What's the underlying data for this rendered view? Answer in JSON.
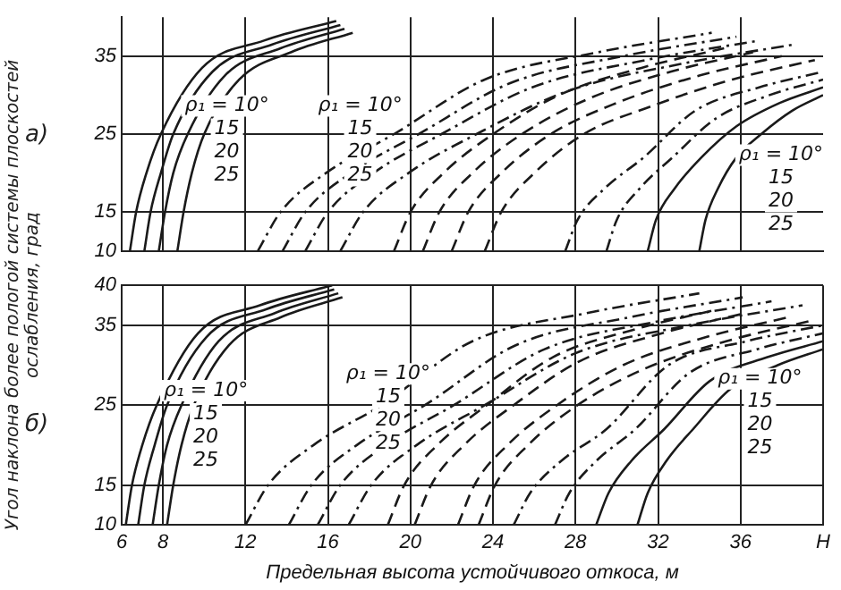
{
  "chart_data": [
    {
      "type": "line",
      "ylabel": "Угол наклона более пологой системы плоскостей ослабления, град",
      "xlim": [
        6,
        40
      ],
      "ylim": [
        10,
        40
      ],
      "xticks": [
        6,
        8,
        12,
        16,
        20,
        24,
        28,
        32,
        36
      ],
      "yticks": [
        10,
        15,
        25,
        35
      ],
      "grid": true,
      "tick_labels": "y",
      "annotations": [
        "а)",
        "ρ₁ = 10°",
        "15",
        "20",
        "25",
        "ρ₁ = 10°",
        "15",
        "20",
        "25",
        "ρ₁ = 10°",
        "15",
        "20",
        "25"
      ],
      "series": [
        {
          "color": "#1a1a1a",
          "line_style": "solid",
          "x": [
            6.4,
            6.7,
            7.2,
            7.9,
            9.9,
            12.9,
            16.4
          ],
          "values": [
            10,
            15,
            20,
            25,
            33.5,
            37,
            39.5
          ]
        },
        {
          "color": "#1a1a1a",
          "line_style": "solid",
          "x": [
            7.1,
            7.4,
            7.9,
            8.5,
            10.4,
            13.3,
            16.6
          ],
          "values": [
            10,
            15,
            20,
            25,
            33,
            36.5,
            39
          ]
        },
        {
          "color": "#1a1a1a",
          "line_style": "solid",
          "x": [
            7.8,
            8.1,
            8.5,
            9.2,
            11,
            13.7,
            16.8
          ],
          "values": [
            10,
            15,
            20,
            25,
            32.5,
            36,
            38.5
          ]
        },
        {
          "color": "#1a1a1a",
          "line_style": "solid",
          "x": [
            8.7,
            9,
            9.4,
            10,
            11.7,
            14.2,
            17.2
          ],
          "values": [
            10,
            15,
            20,
            25,
            32,
            35.5,
            38
          ]
        },
        {
          "color": "#1a1a1a",
          "line_style": "dotted",
          "x": [
            12.6,
            13.7,
            15.9,
            19.2,
            23.6,
            29.1,
            34.6
          ],
          "values": [
            10,
            15,
            20,
            25,
            32,
            35.5,
            38
          ]
        },
        {
          "color": "#1a1a1a",
          "line_style": "dotted",
          "x": [
            13.8,
            14.9,
            17.1,
            20.4,
            24.8,
            30.3,
            35.8
          ],
          "values": [
            10,
            15,
            20,
            25,
            31.5,
            35,
            37.5
          ]
        },
        {
          "color": "#1a1a1a",
          "line_style": "dotted",
          "x": [
            14.9,
            16,
            18.2,
            21.5,
            25.9,
            31.4,
            36.9
          ],
          "values": [
            10,
            15,
            20,
            25,
            31,
            34.5,
            37
          ]
        },
        {
          "color": "#1a1a1a",
          "line_style": "dotted",
          "x": [
            16.6,
            17.7,
            19.9,
            23.2,
            27.6,
            33.1,
            38.6
          ],
          "values": [
            10,
            15,
            20,
            25,
            30.5,
            34,
            36.5
          ]
        },
        {
          "color": "#1a1a1a",
          "line_style": "dashed",
          "x": [
            19.2,
            20,
            21.6,
            24,
            27.2,
            31.2,
            35.2
          ],
          "values": [
            10,
            15,
            20,
            25,
            30,
            33.5,
            36
          ]
        },
        {
          "color": "#1a1a1a",
          "line_style": "dashed",
          "x": [
            20.6,
            21.4,
            23,
            25.4,
            28.6,
            32.6,
            36.6
          ],
          "values": [
            10,
            15,
            20,
            25,
            29.5,
            33,
            35.5
          ]
        },
        {
          "color": "#1a1a1a",
          "line_style": "dashed",
          "x": [
            22,
            22.8,
            24.4,
            26.8,
            30,
            34,
            38
          ],
          "values": [
            10,
            15,
            20,
            25,
            29,
            32.5,
            35
          ]
        },
        {
          "color": "#1a1a1a",
          "line_style": "dashed",
          "x": [
            23.6,
            24.4,
            26,
            28.4,
            31.6,
            35.6,
            39.6
          ],
          "values": [
            10,
            15,
            20,
            25,
            28.5,
            32,
            34.5
          ]
        },
        {
          "color": "#1a1a1a",
          "line_style": "dotted",
          "x": [
            27.5,
            28.1,
            29.4,
            31.3,
            33.8,
            36.9,
            40
          ],
          "values": [
            10,
            14,
            18,
            22,
            28,
            31,
            33
          ]
        },
        {
          "color": "#1a1a1a",
          "line_style": "dotted",
          "x": [
            29.5,
            30,
            31.1,
            32.7,
            34.8,
            37.4,
            40
          ],
          "values": [
            10,
            14,
            18,
            22,
            27,
            30,
            32
          ]
        },
        {
          "color": "#1a1a1a",
          "line_style": "solid",
          "x": [
            31.5,
            31.9,
            32.8,
            34.1,
            35.8,
            37.9,
            40
          ],
          "values": [
            10,
            14,
            18,
            22,
            26,
            29,
            31
          ]
        },
        {
          "color": "#1a1a1a",
          "line_style": "solid",
          "x": [
            34,
            34.3,
            34.9,
            35.8,
            37,
            38.5,
            40
          ],
          "values": [
            10,
            14,
            18,
            22,
            25,
            28,
            30
          ]
        }
      ]
    },
    {
      "type": "line",
      "xlabel": "Предельная высота устойчивого откоса, м",
      "xlim": [
        6,
        40
      ],
      "ylim": [
        10,
        40
      ],
      "xticks": [
        6,
        8,
        12,
        16,
        20,
        24,
        28,
        32,
        36,
        {
          "value": 40,
          "label": "H"
        }
      ],
      "yticks": [
        10,
        15,
        25,
        35,
        40
      ],
      "grid": true,
      "annotations": [
        "б)",
        "ρ₁ = 10°",
        "15",
        "20",
        "25",
        "ρ₁ = 10°",
        "15",
        "20",
        "25",
        "ρ₁ = 10°",
        "15",
        "20",
        "25"
      ],
      "series": [
        {
          "color": "#1a1a1a",
          "line_style": "solid",
          "x": [
            6.2,
            6.5,
            7,
            7.7,
            9.7,
            12.7,
            16.2
          ],
          "values": [
            10,
            15,
            20,
            25,
            34,
            37.5,
            40
          ]
        },
        {
          "color": "#1a1a1a",
          "line_style": "solid",
          "x": [
            6.8,
            7.1,
            7.6,
            8.2,
            10.1,
            13,
            16.3
          ],
          "values": [
            10,
            15,
            20,
            25,
            33.5,
            37,
            39.5
          ]
        },
        {
          "color": "#1a1a1a",
          "line_style": "solid",
          "x": [
            7.5,
            7.8,
            8.2,
            8.9,
            10.7,
            13.4,
            16.5
          ],
          "values": [
            10,
            15,
            20,
            25,
            33,
            36.5,
            39
          ]
        },
        {
          "color": "#1a1a1a",
          "line_style": "solid",
          "x": [
            8.2,
            8.5,
            8.9,
            9.5,
            11.2,
            13.7,
            16.7
          ],
          "values": [
            10,
            15,
            20,
            25,
            32.5,
            36,
            38.5
          ]
        },
        {
          "color": "#1a1a1a",
          "line_style": "dotted",
          "x": [
            12,
            13.1,
            15.3,
            18.6,
            23,
            28.5,
            34
          ],
          "values": [
            10,
            15,
            20,
            25,
            33,
            36.5,
            39
          ]
        },
        {
          "color": "#1a1a1a",
          "line_style": "dotted",
          "x": [
            14.1,
            15.2,
            17.4,
            20.7,
            25.1,
            30.6,
            36.1
          ],
          "values": [
            10,
            15,
            20,
            25,
            32.5,
            36,
            38.5
          ]
        },
        {
          "color": "#1a1a1a",
          "line_style": "dotted",
          "x": [
            15.5,
            16.6,
            18.8,
            22.1,
            26.5,
            32,
            37.5
          ],
          "values": [
            10,
            15,
            20,
            25,
            32,
            35.5,
            38
          ]
        },
        {
          "color": "#1a1a1a",
          "line_style": "dotted",
          "x": [
            17,
            18.1,
            20.3,
            23.6,
            28,
            33.5,
            39
          ],
          "values": [
            10,
            15,
            20,
            25,
            31.5,
            35,
            37.5
          ]
        },
        {
          "color": "#1a1a1a",
          "line_style": "dashed",
          "x": [
            18.9,
            19.7,
            21.3,
            23.7,
            26.9,
            30.9,
            34.9
          ],
          "values": [
            10,
            15,
            20,
            25,
            31,
            34.5,
            37
          ]
        },
        {
          "color": "#1a1a1a",
          "line_style": "dashed",
          "x": [
            20.2,
            21,
            22.6,
            25,
            28.2,
            32.2,
            36.2
          ],
          "values": [
            10,
            15,
            20,
            25,
            30.5,
            34,
            36.5
          ]
        },
        {
          "color": "#1a1a1a",
          "line_style": "dashed",
          "x": [
            22.3,
            23.1,
            24.7,
            27.1,
            30.3,
            34.3,
            38.3
          ],
          "values": [
            10,
            15,
            20,
            25,
            30,
            33.5,
            36
          ]
        },
        {
          "color": "#1a1a1a",
          "line_style": "dashed",
          "x": [
            23.3,
            24.1,
            25.7,
            28.1,
            31.3,
            35.3,
            39.3
          ],
          "values": [
            10,
            15,
            20,
            25,
            29.5,
            33,
            35.5
          ]
        },
        {
          "color": "#1a1a1a",
          "line_style": "dotted",
          "x": [
            25,
            25.8,
            27.3,
            29.5,
            32.5,
            36.3,
            40
          ],
          "values": [
            10,
            14,
            18,
            22,
            30,
            33,
            35
          ]
        },
        {
          "color": "#1a1a1a",
          "line_style": "dotted",
          "x": [
            27,
            27.7,
            29,
            30.9,
            33.5,
            36.8,
            40
          ],
          "values": [
            10,
            14,
            18,
            22,
            29,
            32,
            34
          ]
        },
        {
          "color": "#1a1a1a",
          "line_style": "solid",
          "x": [
            29,
            29.6,
            30.7,
            32.3,
            34.5,
            37.3,
            40
          ],
          "values": [
            10,
            14,
            18,
            22,
            28,
            31,
            33
          ]
        },
        {
          "color": "#1a1a1a",
          "line_style": "solid",
          "x": [
            31,
            31.5,
            32.4,
            33.7,
            35.5,
            37.8,
            40
          ],
          "values": [
            10,
            14,
            18,
            22,
            27,
            30,
            32
          ]
        }
      ]
    }
  ]
}
